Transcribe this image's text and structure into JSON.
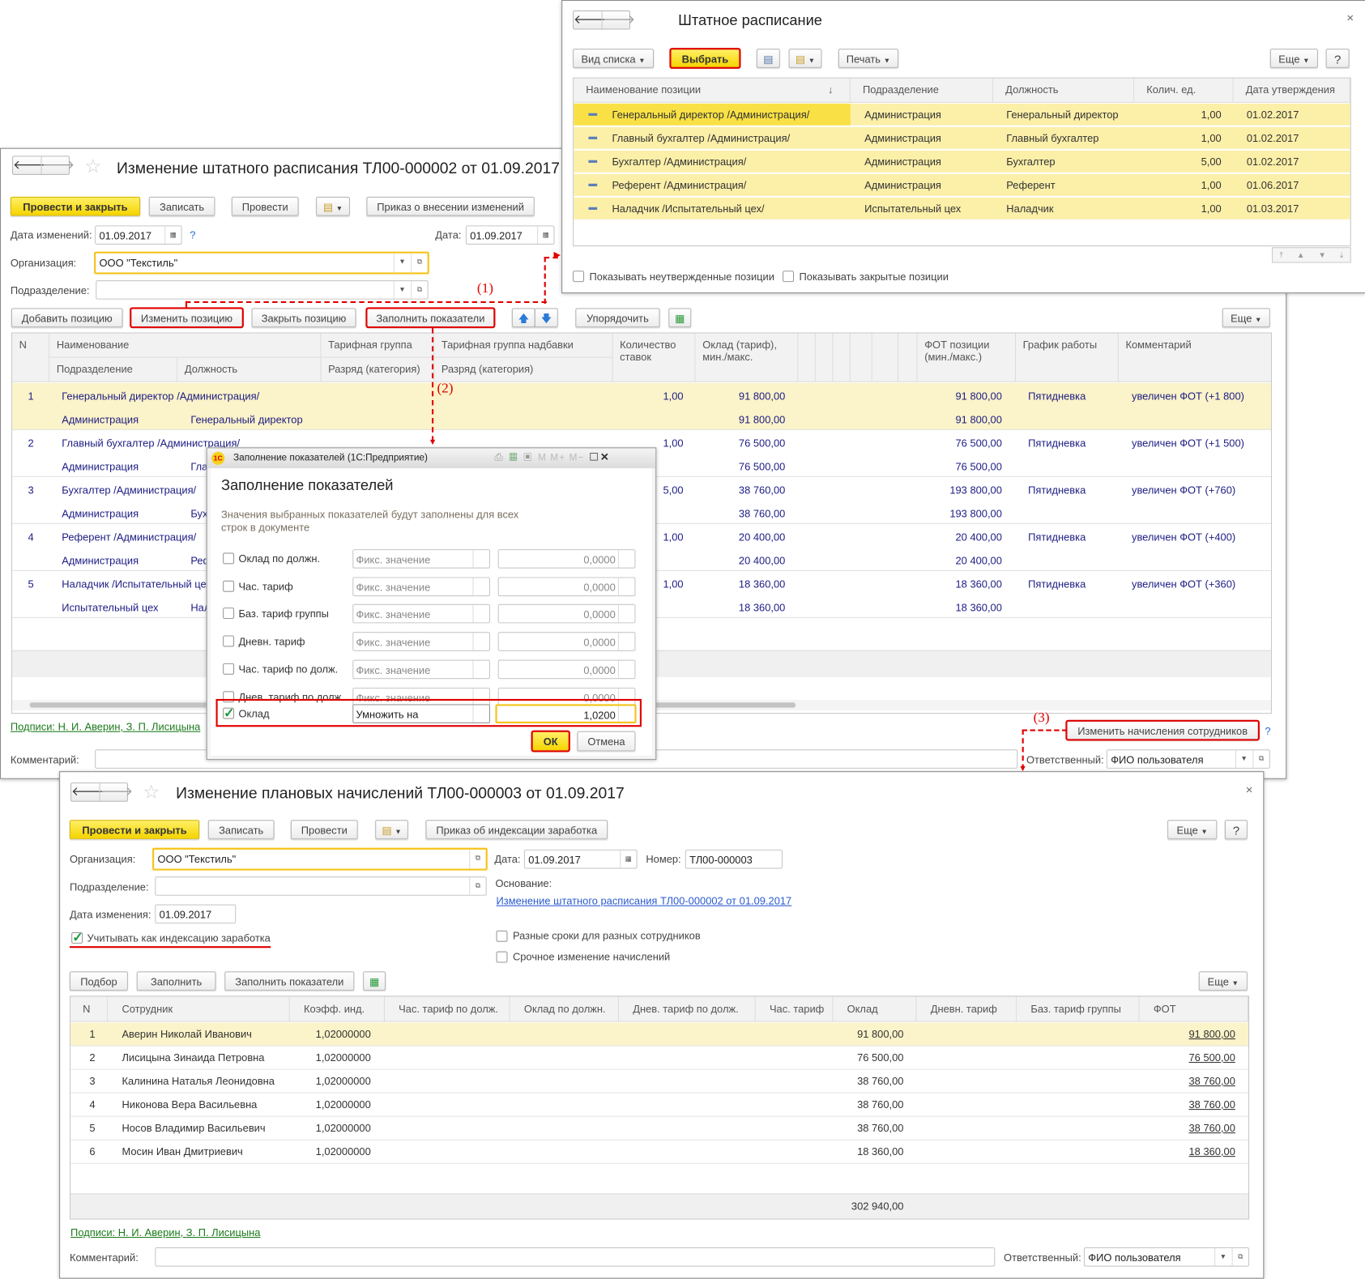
{
  "colors": {
    "accent_yellow": "#f5d400",
    "highlight_row": "#fbf3c9",
    "annotation_red": "#e00000",
    "link_green": "#1a7a1a",
    "value_blue": "#1c1c84"
  },
  "staff_list": {
    "title": "Штатное расписание",
    "close": "×",
    "view_list": "Вид списка",
    "select": "Выбрать",
    "print": "Печать",
    "more": "Еще",
    "help": "?",
    "sort_icon": "↓",
    "columns": [
      "Наименование позиции",
      "Подразделение",
      "Должность",
      "Колич. ед.",
      "Дата утверждения"
    ],
    "rows": [
      {
        "name": "Генеральный директор /Администрация/",
        "dept": "Администрация",
        "position": "Генеральный директор",
        "qty": "1,00",
        "date": "01.02.2017"
      },
      {
        "name": "Главный бухгалтер /Администрация/",
        "dept": "Администрация",
        "position": "Главный бухгалтер",
        "qty": "1,00",
        "date": "01.02.2017"
      },
      {
        "name": "Бухгалтер /Администрация/",
        "dept": "Администрация",
        "position": "Бухгалтер",
        "qty": "5,00",
        "date": "01.02.2017"
      },
      {
        "name": "Референт /Администрация/",
        "dept": "Администрация",
        "position": "Референт",
        "qty": "1,00",
        "date": "01.06.2017"
      },
      {
        "name": "Наладчик /Испытательный цех/",
        "dept": "Испытательный цех",
        "position": "Наладчик",
        "qty": "1,00",
        "date": "01.03.2017"
      }
    ],
    "show_unapproved": "Показывать неутвержденные позиции",
    "show_closed": "Показывать закрытые позиции"
  },
  "change_doc": {
    "title": "Изменение штатного расписания ТЛ00-000002 от 01.09.2017",
    "post_close": "Провести и закрыть",
    "save": "Записать",
    "post": "Провести",
    "order": "Приказ о внесении изменений",
    "date_changes_label": "Дата изменений:",
    "date_changes": "01.09.2017",
    "help": "?",
    "date_label": "Дата:",
    "date": "01.09.2017",
    "org_label": "Организация:",
    "org": "ООО \"Текстиль\"",
    "dept_label": "Подразделение:",
    "dept": "",
    "add_position": "Добавить позицию",
    "change_position": "Изменить позицию",
    "close_position": "Закрыть позицию",
    "fill_indicators": "Заполнить показатели",
    "sort": "Упорядочить",
    "more": "Еще",
    "columns": {
      "n": "N",
      "name": "Наименование",
      "dept": "Подразделение",
      "position": "Должность",
      "tariff_group": "Тарифная группа",
      "grade": "Разряд (категория)",
      "tariff_group_bonus": "Тарифная группа надбавки",
      "grade2": "Разряд (категория)",
      "qty": "Количество ставок",
      "salary": "Оклад (тариф), мин./макс.",
      "fot": "ФОТ позиции (мин./макс.)",
      "schedule": "График работы",
      "comment": "Комментарий"
    },
    "rows": [
      {
        "n": "1",
        "name": "Генеральный директор /Администрация/",
        "dept": "Администрация",
        "position": "Генеральный директор",
        "qty": "1,00",
        "salary_min": "91 800,00",
        "salary_max": "91 800,00",
        "fot_min": "91 800,00",
        "fot_max": "91 800,00",
        "schedule": "Пятидневка",
        "comment": "увеличен ФОТ (+1 800)"
      },
      {
        "n": "2",
        "name": "Главный бухгалтер /Администрация/",
        "dept": "Администрация",
        "position": "Главный бухгалтер",
        "qty": "1,00",
        "salary_min": "76 500,00",
        "salary_max": "76 500,00",
        "fot_min": "76 500,00",
        "fot_max": "76 500,00",
        "schedule": "Пятидневка",
        "comment": "увеличен ФОТ (+1 500)"
      },
      {
        "n": "3",
        "name": "Бухгалтер /Администрация/",
        "dept": "Администрация",
        "position": "Бухгалтер",
        "qty": "5,00",
        "salary_min": "38 760,00",
        "salary_max": "38 760,00",
        "fot_min": "193 800,00",
        "fot_max": "193 800,00",
        "schedule": "Пятидневка",
        "comment": "увеличен ФОТ (+760)"
      },
      {
        "n": "4",
        "name": "Референт /Администрация/",
        "dept": "Администрация",
        "position": "Референт",
        "qty": "1,00",
        "salary_min": "20 400,00",
        "salary_max": "20 400,00",
        "fot_min": "20 400,00",
        "fot_max": "20 400,00",
        "schedule": "Пятидневка",
        "comment": "увеличен ФОТ (+400)"
      },
      {
        "n": "5",
        "name": "Наладчик /Испытательный цех/",
        "dept": "Испытательный цех",
        "position": "Наладчик",
        "qty": "1,00",
        "salary_min": "18 360,00",
        "salary_max": "18 360,00",
        "fot_min": "18 360,00",
        "fot_max": "18 360,00",
        "schedule": "Пятидневка",
        "comment": "увеличен ФОТ (+360)"
      }
    ],
    "signatures": "Подписи: Н. И. Аверин, З. П. Лисицына",
    "comment_label": "Комментарий:",
    "comment": "",
    "change_accruals": "Изменить начисления сотрудников",
    "responsible_label": "Ответственный:",
    "responsible": "ФИО пользователя"
  },
  "fill_dialog": {
    "window_title": "Заполнение показателей  (1С:Предприятие)",
    "title": "Заполнение показателей",
    "description": "Значения выбранных показателей будут заполнены для всех строк в документе",
    "rows": [
      {
        "label": "Оклад по должн.",
        "checked": false,
        "mode": "Фикс. значение",
        "value": "0,0000"
      },
      {
        "label": "Час. тариф",
        "checked": false,
        "mode": "Фикс. значение",
        "value": "0,0000"
      },
      {
        "label": "Баз. тариф группы",
        "checked": false,
        "mode": "Фикс. значение",
        "value": "0,0000"
      },
      {
        "label": "Дневн. тариф",
        "checked": false,
        "mode": "Фикс. значение",
        "value": "0,0000"
      },
      {
        "label": "Час. тариф по долж.",
        "checked": false,
        "mode": "Фикс. значение",
        "value": "0,0000"
      },
      {
        "label": "Днев. тариф по долж.",
        "checked": false,
        "mode": "Фикс. значение",
        "value": "0,0000"
      },
      {
        "label": "Оклад",
        "checked": true,
        "mode": "Умножить на",
        "value": "1,0200"
      }
    ],
    "ok": "ОК",
    "cancel": "Отмена"
  },
  "accruals_doc": {
    "title": "Изменение плановых начислений ТЛ00-000003 от 01.09.2017",
    "close": "×",
    "post_close": "Провести и закрыть",
    "save": "Записать",
    "post": "Провести",
    "order": "Приказ об индексации заработка",
    "more": "Еще",
    "help": "?",
    "org_label": "Организация:",
    "org": "ООО \"Текстиль\"",
    "date_label": "Дата:",
    "date": "01.09.2017",
    "number_label": "Номер:",
    "number": "ТЛ00-000003",
    "dept_label": "Подразделение:",
    "dept": "",
    "basis_label": "Основание:",
    "basis": "Изменение штатного расписания ТЛ00-000002 от 01.09.2017",
    "change_date_label": "Дата изменения:",
    "change_date": "01.09.2017",
    "indexation": "Учитывать как индексацию заработка",
    "indexation_checked": true,
    "different_dates": "Разные сроки для разных сотрудников",
    "urgent_change": "Срочное изменение начислений",
    "pick": "Подбор",
    "fill": "Заполнить",
    "fill_indicators": "Заполнить показатели",
    "columns": [
      "N",
      "Сотрудник",
      "Коэфф. инд.",
      "Час. тариф по долж.",
      "Оклад по должн.",
      "Днев. тариф по долж.",
      "Час. тариф",
      "Оклад",
      "Дневн. тариф",
      "Баз. тариф группы",
      "ФОТ"
    ],
    "rows": [
      {
        "n": "1",
        "employee": "Аверин Николай Иванович",
        "coef": "1,02000000",
        "salary": "91 800,00",
        "fot": "91 800,00"
      },
      {
        "n": "2",
        "employee": "Лисицына Зинаида Петровна",
        "coef": "1,02000000",
        "salary": "76 500,00",
        "fot": "76 500,00"
      },
      {
        "n": "3",
        "employee": "Калинина Наталья Леонидовна",
        "coef": "1,02000000",
        "salary": "38 760,00",
        "fot": "38 760,00"
      },
      {
        "n": "4",
        "employee": "Никонова Вера Васильевна",
        "coef": "1,02000000",
        "salary": "38 760,00",
        "fot": "38 760,00"
      },
      {
        "n": "5",
        "employee": "Носов Владимир Васильевич",
        "coef": "1,02000000",
        "salary": "38 760,00",
        "fot": "38 760,00"
      },
      {
        "n": "6",
        "employee": "Мосин Иван Дмитриевич",
        "coef": "1,02000000",
        "salary": "18 360,00",
        "fot": "18 360,00"
      }
    ],
    "total_salary": "302 940,00",
    "signatures": "Подписи: Н. И. Аверин, З. П. Лисицына",
    "comment_label": "Комментарий:",
    "comment": "",
    "responsible_label": "Ответственный:",
    "responsible": "ФИО пользователя"
  },
  "annotations": [
    "(1)",
    "(2)",
    "(3)"
  ]
}
